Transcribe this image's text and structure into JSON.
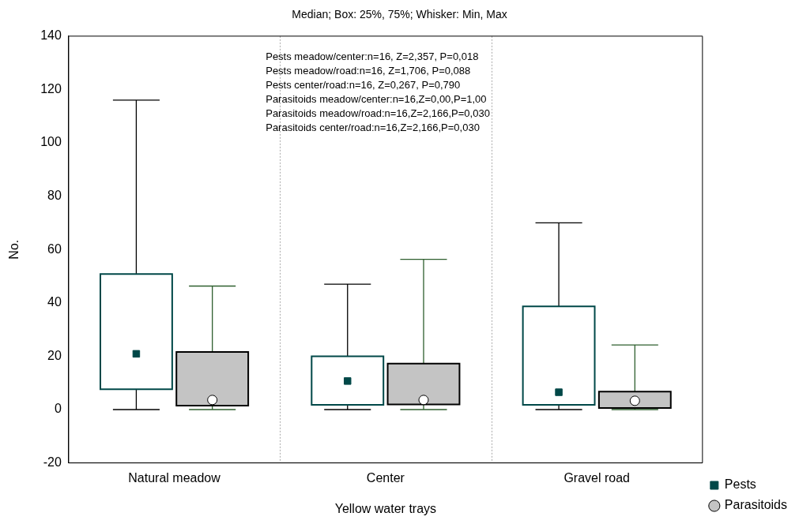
{
  "chart_data": {
    "type": "box",
    "title": "Median; Box: 25%, 75%; Whisker: Min, Max",
    "xlabel": "Yellow water trays",
    "ylabel": "No.",
    "categories": [
      "Natural meadow",
      "Center",
      "Gravel road"
    ],
    "ylim": [
      -20,
      140
    ],
    "yticks": [
      -20,
      0,
      20,
      40,
      60,
      80,
      100,
      120,
      140
    ],
    "grid": "x",
    "legend": "bottom right",
    "marker": "square",
    "series": [
      {
        "name": "Pests",
        "color": "#004848",
        "boxes": [
          {
            "low": 0,
            "q1": 7.6,
            "median": 20.9,
            "q3": 50.8,
            "high": 116
          },
          {
            "low": 0,
            "q1": 1.8,
            "median": 10.7,
            "q3": 20,
            "high": 47
          },
          {
            "low": 0,
            "q1": 1.8,
            "median": 6.5,
            "q3": 38.7,
            "high": 70
          }
        ]
      },
      {
        "name": "Parasitoids",
        "color": "#c4c4c4",
        "marker": "circle",
        "boxes": [
          {
            "low": 0,
            "q1": 1.5,
            "median": 3.6,
            "q3": 21.6,
            "high": 46.3
          },
          {
            "low": 0,
            "q1": 1.9,
            "median": 3.6,
            "q3": 17.2,
            "high": 56.3
          },
          {
            "low": 0,
            "q1": 0.6,
            "median": 3.3,
            "q3": 6.7,
            "high": 24.2
          }
        ]
      }
    ],
    "annotations": [
      "Pests meadow/center:n=16, Z=2,357, P=0,018",
      "Pests meadow/road:n=16, Z=1,706, P=0,088",
      "Pests center/road:n=16, Z=0,267, P=0,790",
      "Parasitoids meadow/center:n=16,Z=0,00,P=1,00",
      "Parasitoids meadow/road:n=16,Z=2,166,P=0,030",
      "Parasitoids center/road:n=16,Z=2,166,P=0,030"
    ]
  }
}
